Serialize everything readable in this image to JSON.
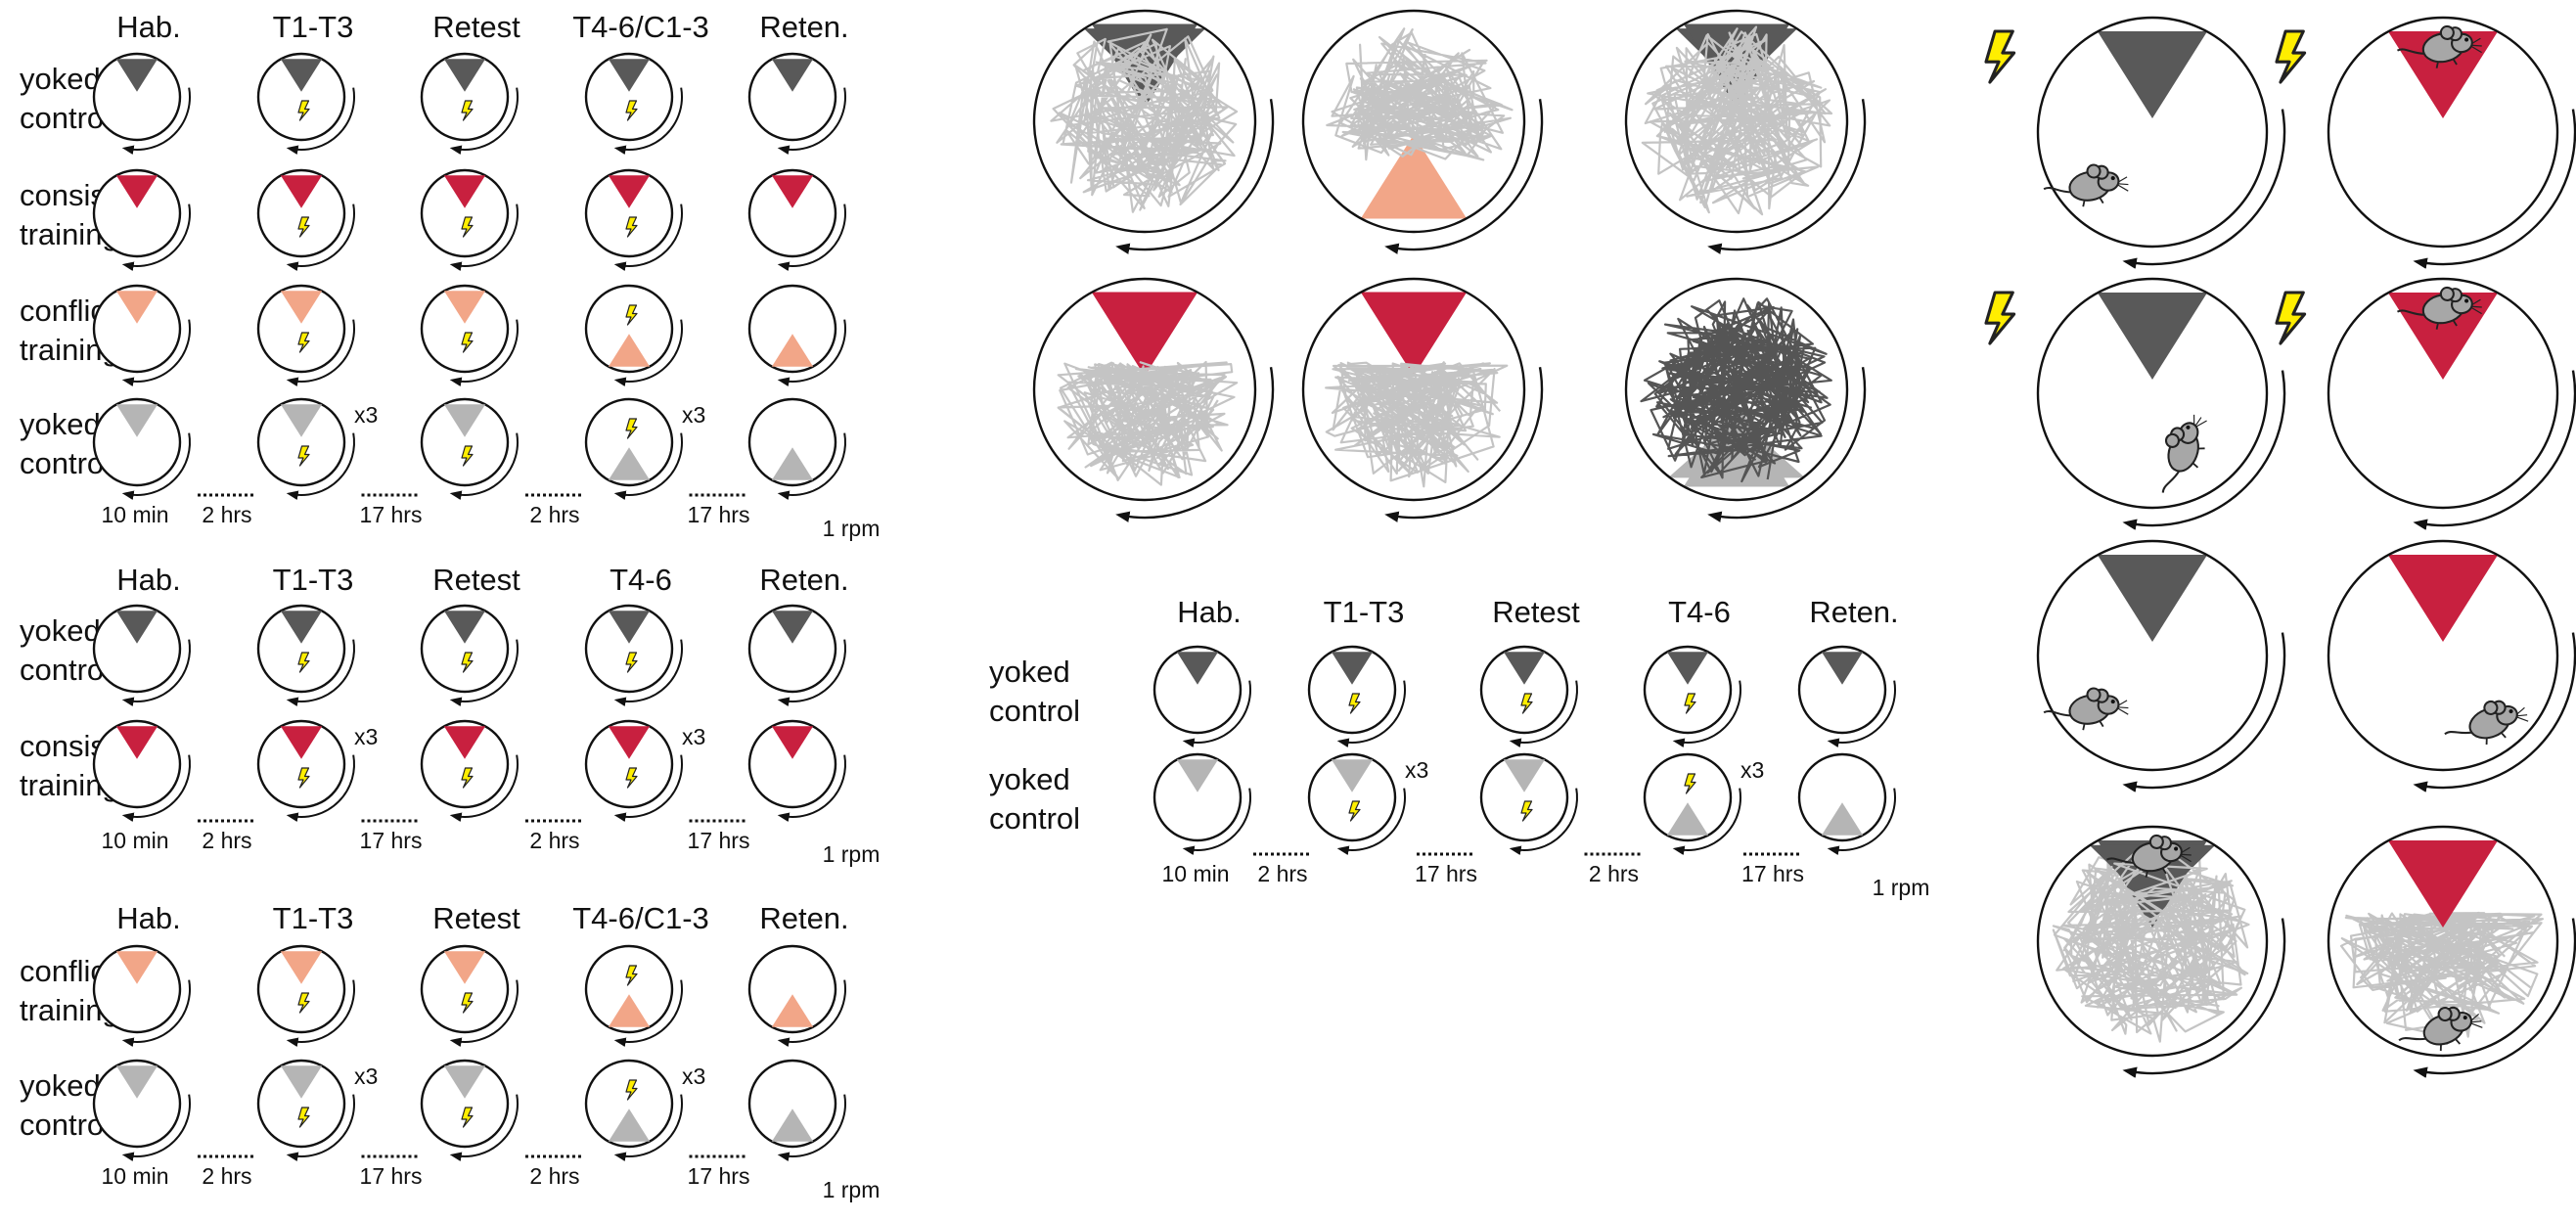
{
  "colors": {
    "dark_zone": "#595959",
    "red_zone": "#c8203f",
    "peach_zone": "#f2a688",
    "light_zone": "#b5b5b5",
    "path_light": "#c4c4c4",
    "path_dark": "#555555",
    "shock": "#ffee00"
  },
  "icons": [
    "shock-bolt-icon",
    "rotation-arrow-icon",
    "mouse-icon",
    "dotted-interval-line"
  ],
  "blocks": [
    {
      "id": "block-a",
      "stage_headers": [
        "Hab.",
        "T1-T3",
        "Retest",
        "T4-6/C1-3",
        "Reten."
      ],
      "rows": [
        {
          "label": [
            "yoked",
            "control"
          ],
          "stages": [
            {
              "zone": "top",
              "color": "dark_zone",
              "shock": false,
              "x3": false
            },
            {
              "zone": "top",
              "color": "dark_zone",
              "shock": true,
              "x3": false
            },
            {
              "zone": "top",
              "color": "dark_zone",
              "shock": true,
              "x3": false
            },
            {
              "zone": "top",
              "color": "dark_zone",
              "shock": true,
              "x3": false
            },
            {
              "zone": "top",
              "color": "dark_zone",
              "shock": false,
              "x3": false
            }
          ]
        },
        {
          "label": [
            "consistent",
            "training"
          ],
          "stages": [
            {
              "zone": "top",
              "color": "red_zone",
              "shock": false,
              "x3": false
            },
            {
              "zone": "top",
              "color": "red_zone",
              "shock": true,
              "x3": false
            },
            {
              "zone": "top",
              "color": "red_zone",
              "shock": true,
              "x3": false
            },
            {
              "zone": "top",
              "color": "red_zone",
              "shock": true,
              "x3": false
            },
            {
              "zone": "top",
              "color": "red_zone",
              "shock": false,
              "x3": false
            }
          ]
        },
        {
          "label": [
            "conflict",
            "training"
          ],
          "stages": [
            {
              "zone": "top",
              "color": "peach_zone",
              "shock": false,
              "x3": false
            },
            {
              "zone": "top",
              "color": "peach_zone",
              "shock": true,
              "x3": false
            },
            {
              "zone": "top",
              "color": "peach_zone",
              "shock": true,
              "x3": false
            },
            {
              "zone": "bottom",
              "color": "peach_zone",
              "shock": true,
              "x3": false
            },
            {
              "zone": "bottom",
              "color": "peach_zone",
              "shock": false,
              "x3": false
            }
          ]
        },
        {
          "label": [
            "yoked",
            "control"
          ],
          "stages": [
            {
              "zone": "top",
              "color": "light_zone",
              "shock": false,
              "x3": false
            },
            {
              "zone": "top",
              "color": "light_zone",
              "shock": true,
              "x3": true
            },
            {
              "zone": "top",
              "color": "light_zone",
              "shock": true,
              "x3": false
            },
            {
              "zone": "bottom",
              "color": "light_zone",
              "shock": true,
              "x3": true
            },
            {
              "zone": "bottom",
              "color": "light_zone",
              "shock": false,
              "x3": false
            }
          ]
        }
      ],
      "x3_label": "x3",
      "timeline": [
        "10 min",
        "2 hrs",
        "17 hrs",
        "2 hrs",
        "17 hrs",
        "1 rpm"
      ]
    },
    {
      "id": "block-b",
      "stage_headers": [
        "Hab.",
        "T1-T3",
        "Retest",
        "T4-6",
        "Reten."
      ],
      "rows": [
        {
          "label": [
            "yoked",
            "control"
          ],
          "stages": [
            {
              "zone": "top",
              "color": "dark_zone",
              "shock": false,
              "x3": false
            },
            {
              "zone": "top",
              "color": "dark_zone",
              "shock": true,
              "x3": false
            },
            {
              "zone": "top",
              "color": "dark_zone",
              "shock": true,
              "x3": false
            },
            {
              "zone": "top",
              "color": "dark_zone",
              "shock": true,
              "x3": false
            },
            {
              "zone": "top",
              "color": "dark_zone",
              "shock": false,
              "x3": false
            }
          ]
        },
        {
          "label": [
            "consistent",
            "training"
          ],
          "stages": [
            {
              "zone": "top",
              "color": "red_zone",
              "shock": false,
              "x3": false
            },
            {
              "zone": "top",
              "color": "red_zone",
              "shock": true,
              "x3": true
            },
            {
              "zone": "top",
              "color": "red_zone",
              "shock": true,
              "x3": false
            },
            {
              "zone": "top",
              "color": "red_zone",
              "shock": true,
              "x3": true
            },
            {
              "zone": "top",
              "color": "red_zone",
              "shock": false,
              "x3": false
            }
          ]
        }
      ],
      "x3_label": "x3",
      "timeline": [
        "10 min",
        "2 hrs",
        "17 hrs",
        "2 hrs",
        "17 hrs",
        "1 rpm"
      ]
    },
    {
      "id": "block-c",
      "stage_headers": [
        "Hab.",
        "T1-T3",
        "Retest",
        "T4-6/C1-3",
        "Reten."
      ],
      "rows": [
        {
          "label": [
            "conflict",
            "training"
          ],
          "stages": [
            {
              "zone": "top",
              "color": "peach_zone",
              "shock": false,
              "x3": false
            },
            {
              "zone": "top",
              "color": "peach_zone",
              "shock": true,
              "x3": false
            },
            {
              "zone": "top",
              "color": "peach_zone",
              "shock": true,
              "x3": false
            },
            {
              "zone": "bottom",
              "color": "peach_zone",
              "shock": true,
              "x3": false
            },
            {
              "zone": "bottom",
              "color": "peach_zone",
              "shock": false,
              "x3": false
            }
          ]
        },
        {
          "label": [
            "yoked",
            "control"
          ],
          "stages": [
            {
              "zone": "top",
              "color": "light_zone",
              "shock": false,
              "x3": false
            },
            {
              "zone": "top",
              "color": "light_zone",
              "shock": true,
              "x3": true
            },
            {
              "zone": "top",
              "color": "light_zone",
              "shock": true,
              "x3": false
            },
            {
              "zone": "bottom",
              "color": "light_zone",
              "shock": true,
              "x3": true
            },
            {
              "zone": "bottom",
              "color": "light_zone",
              "shock": false,
              "x3": false
            }
          ]
        }
      ],
      "x3_label": "x3",
      "timeline": [
        "10 min",
        "2 hrs",
        "17 hrs",
        "2 hrs",
        "17 hrs",
        "1 rpm"
      ]
    },
    {
      "id": "block-d",
      "stage_headers": [
        "Hab.",
        "T1-T3",
        "Retest",
        "T4-6",
        "Reten."
      ],
      "rows": [
        {
          "label": [
            "yoked",
            "control"
          ],
          "stages": [
            {
              "zone": "top",
              "color": "dark_zone",
              "shock": false,
              "x3": false
            },
            {
              "zone": "top",
              "color": "dark_zone",
              "shock": true,
              "x3": false
            },
            {
              "zone": "top",
              "color": "dark_zone",
              "shock": true,
              "x3": false
            },
            {
              "zone": "top",
              "color": "dark_zone",
              "shock": true,
              "x3": false
            },
            {
              "zone": "top",
              "color": "dark_zone",
              "shock": false,
              "x3": false
            }
          ]
        },
        {
          "label": [
            "yoked",
            "control"
          ],
          "stages": [
            {
              "zone": "top",
              "color": "light_zone",
              "shock": false,
              "x3": false
            },
            {
              "zone": "top",
              "color": "light_zone",
              "shock": true,
              "x3": true
            },
            {
              "zone": "top",
              "color": "light_zone",
              "shock": true,
              "x3": false
            },
            {
              "zone": "bottom",
              "color": "light_zone",
              "shock": true,
              "x3": true
            },
            {
              "zone": "bottom",
              "color": "light_zone",
              "shock": false,
              "x3": false
            }
          ]
        }
      ],
      "x3_label": "x3",
      "timeline": [
        "10 min",
        "2 hrs",
        "17 hrs",
        "2 hrs",
        "17 hrs",
        "1 rpm"
      ]
    }
  ],
  "trajectory_panels": [
    {
      "zones": [
        {
          "zone": "top-wide",
          "color": "dark_zone"
        },
        {
          "zone": "top",
          "color": "dark_zone"
        }
      ],
      "path": "light",
      "pattern": "orbit"
    },
    {
      "zones": [
        {
          "zone": "bottom",
          "color": "peach_zone"
        }
      ],
      "path": "light",
      "pattern": "orbit-top"
    },
    {
      "zones": [
        {
          "zone": "top-wide",
          "color": "dark_zone"
        },
        {
          "zone": "top",
          "color": "dark_zone"
        }
      ],
      "path": "light",
      "pattern": "orbit"
    },
    {
      "zones": [
        {
          "zone": "top",
          "color": "red_zone"
        }
      ],
      "path": "light",
      "pattern": "low"
    },
    {
      "zones": [
        {
          "zone": "top",
          "color": "red_zone"
        }
      ],
      "path": "light",
      "pattern": "low"
    },
    {
      "zones": [
        {
          "zone": "bottom-wide",
          "color": "light_zone"
        },
        {
          "zone": "bottom",
          "color": "light_zone"
        }
      ],
      "path": "dark",
      "pattern": "orbit"
    }
  ],
  "mouse_panels": [
    {
      "zone_color": "dark_zone",
      "shock": true,
      "mouse": "lower-left",
      "path": false
    },
    {
      "zone_color": "red_zone",
      "shock": true,
      "mouse": "in-zone",
      "path": false
    },
    {
      "zone_color": "dark_zone",
      "shock": true,
      "mouse": "right",
      "path": false
    },
    {
      "zone_color": "red_zone",
      "shock": true,
      "mouse": "in-zone",
      "path": false
    },
    {
      "zone_color": "dark_zone",
      "shock": false,
      "mouse": "lower-left",
      "path": false
    },
    {
      "zone_color": "red_zone",
      "shock": false,
      "mouse": "lower-right",
      "path": false
    },
    {
      "zone_color": "dark_zone",
      "shock": false,
      "mouse": "in-zone",
      "path": true
    },
    {
      "zone_color": "red_zone",
      "shock": false,
      "mouse": "bottom",
      "path": true
    }
  ]
}
